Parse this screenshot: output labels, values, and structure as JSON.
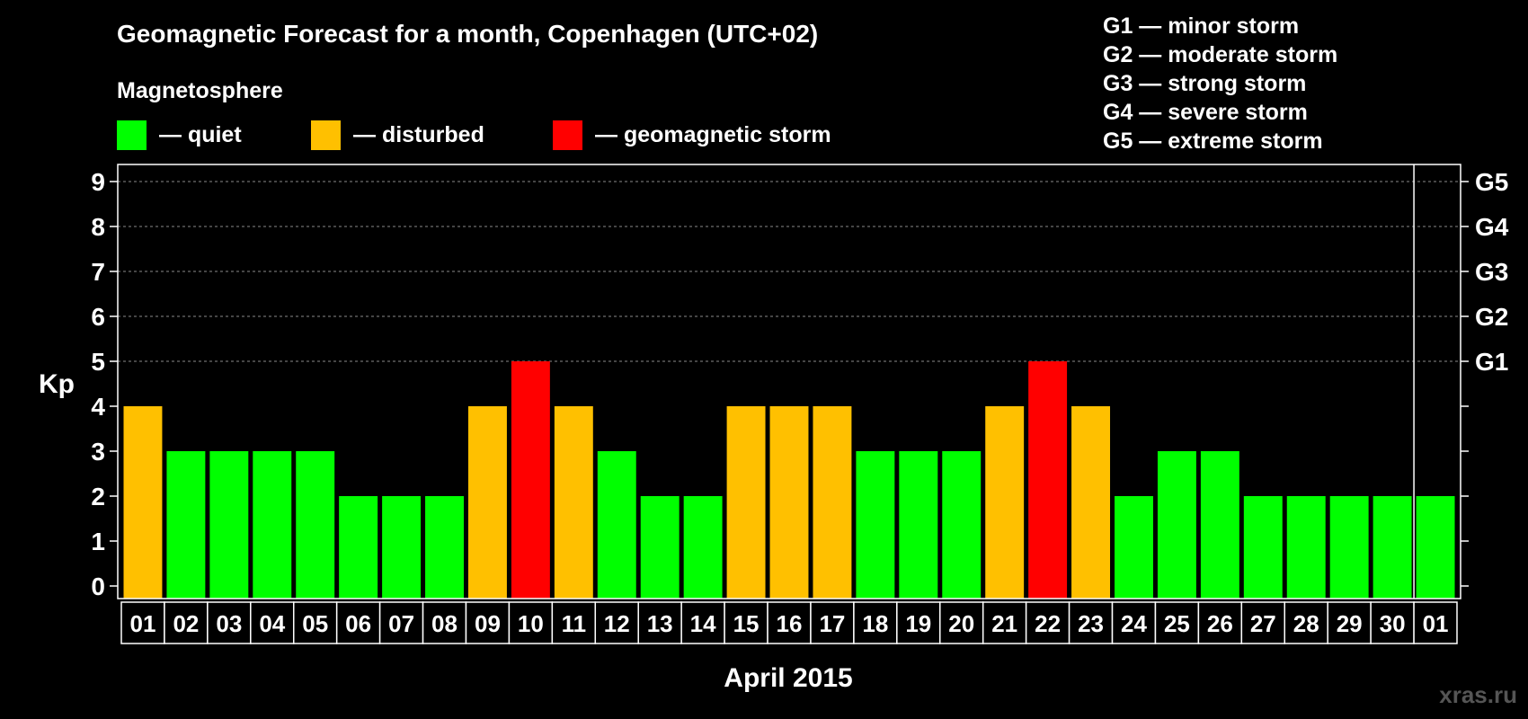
{
  "chart_data": {
    "type": "bar",
    "title": "Geomagnetic Forecast for a month, Copenhagen (UTC+02)",
    "legend_title": "Magnetosphere",
    "legend": [
      {
        "label": "— quiet",
        "color": "#00ff00"
      },
      {
        "label": "— disturbed",
        "color": "#ffc000"
      },
      {
        "label": "— geomagnetic storm",
        "color": "#ff0000"
      }
    ],
    "storm_scale": [
      "G1 — minor storm",
      "G2 — moderate storm",
      "G3 — strong storm",
      "G4 — severe storm",
      "G5 — extreme storm"
    ],
    "ylabel": "Kp",
    "xlabel": "April 2015",
    "ylim": [
      0,
      9
    ],
    "yticks": [
      0,
      1,
      2,
      3,
      4,
      5,
      6,
      7,
      8,
      9
    ],
    "right_ticks": [
      {
        "value": 5,
        "label": "G1"
      },
      {
        "value": 6,
        "label": "G2"
      },
      {
        "value": 7,
        "label": "G3"
      },
      {
        "value": 8,
        "label": "G4"
      },
      {
        "value": 9,
        "label": "G5"
      }
    ],
    "categories": [
      "01",
      "02",
      "03",
      "04",
      "05",
      "06",
      "07",
      "08",
      "09",
      "10",
      "11",
      "12",
      "13",
      "14",
      "15",
      "16",
      "17",
      "18",
      "19",
      "20",
      "21",
      "22",
      "23",
      "24",
      "25",
      "26",
      "27",
      "28",
      "29",
      "30",
      "01"
    ],
    "values": [
      4,
      3,
      3,
      3,
      3,
      2,
      2,
      2,
      4,
      5,
      4,
      3,
      2,
      2,
      4,
      4,
      4,
      3,
      3,
      3,
      4,
      5,
      4,
      2,
      3,
      3,
      2,
      2,
      2,
      2,
      2
    ],
    "colors": {
      "quiet": "#00ff00",
      "disturbed": "#ffc000",
      "storm": "#ff0000"
    },
    "grid": true,
    "today_marker_after_index": 29
  },
  "watermark": "xras.ru"
}
